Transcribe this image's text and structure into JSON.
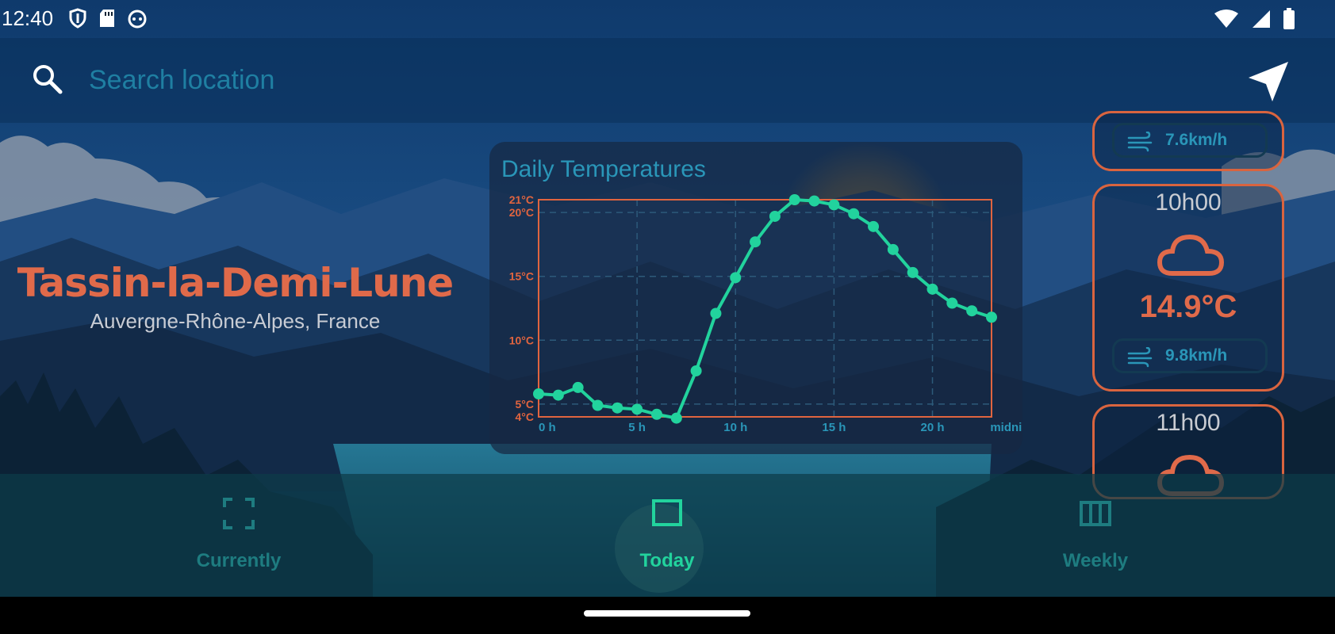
{
  "status_bar": {
    "time": "12:40",
    "left_icons": [
      "shield-icon",
      "sd-card-icon",
      "android-head-icon"
    ],
    "right_icons": [
      "wifi-icon",
      "cell-signal-icon",
      "battery-icon"
    ]
  },
  "search": {
    "placeholder": "Search location",
    "value": ""
  },
  "location": {
    "city": "Tassin-la-Demi-Lune",
    "region": "Auvergne-Rhône-Alpes, France"
  },
  "hourly": [
    {
      "hour": "",
      "wind": "7.6km/h"
    },
    {
      "hour": "10h00",
      "icon": "cloud-icon",
      "temp": "14.9°C",
      "wind": "9.8km/h"
    },
    {
      "hour": "11h00",
      "icon": "cloud-icon"
    }
  ],
  "chart_data": {
    "type": "line",
    "title": "Daily Temperatures",
    "x": [
      0,
      1,
      2,
      3,
      4,
      5,
      6,
      7,
      8,
      9,
      10,
      11,
      12,
      13,
      14,
      15,
      16,
      17,
      18,
      19,
      20,
      21,
      22,
      23
    ],
    "values": [
      5.8,
      5.7,
      6.3,
      4.9,
      4.7,
      4.6,
      4.2,
      3.9,
      7.6,
      12.1,
      14.9,
      17.7,
      19.7,
      21.0,
      20.9,
      20.6,
      19.9,
      18.9,
      17.1,
      15.3,
      14.0,
      12.9,
      12.3,
      11.8
    ],
    "xticks": [
      "0 h",
      "5 h",
      "10 h",
      "15 h",
      "20 h",
      "midnight"
    ],
    "xtick_values": [
      0,
      5,
      10,
      15,
      20,
      23
    ],
    "yticks": [
      "4°C",
      "5°C",
      "10°C",
      "15°C",
      "20°C",
      "21°C"
    ],
    "ytick_values": [
      4,
      5,
      10,
      15,
      20,
      21
    ],
    "ylim": [
      4,
      21
    ],
    "xlim": [
      0,
      23
    ],
    "grid": true,
    "line_color": "#22d39d",
    "axis_color": "#e0643f"
  },
  "nav": {
    "items": [
      {
        "label": "Currently",
        "icon": "fullscreen-frame-icon"
      },
      {
        "label": "Today",
        "icon": "square-icon"
      },
      {
        "label": "Weekly",
        "icon": "columns-icon"
      }
    ],
    "active": "Today"
  },
  "colors": {
    "accent": "#e06a4a",
    "teal": "#22d39d",
    "info": "#2a96b8"
  }
}
